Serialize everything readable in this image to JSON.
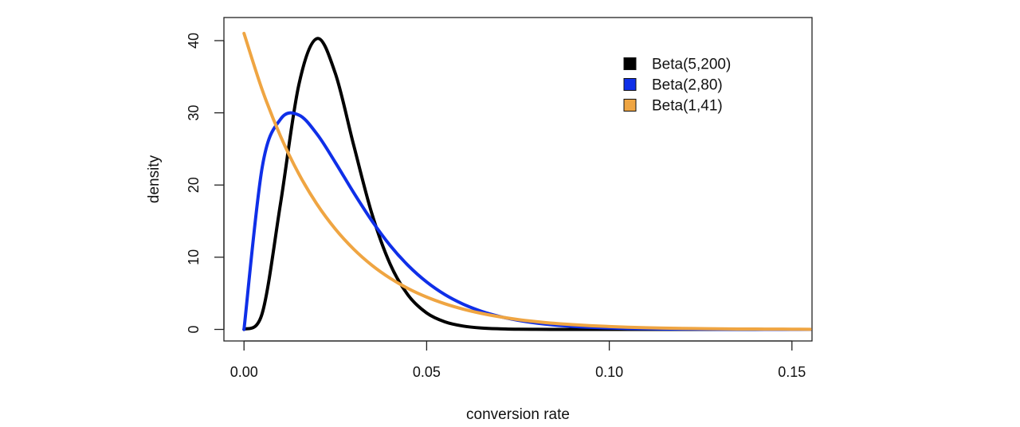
{
  "chart_data": {
    "type": "line",
    "title": "",
    "xlabel": "conversion rate",
    "ylabel": "density",
    "xlim": [
      -0.0055,
      0.1555
    ],
    "ylim": [
      -1.6,
      43.2
    ],
    "x_ticks": [
      0.0,
      0.05,
      0.1,
      0.15
    ],
    "x_tick_labels": [
      "0.00",
      "0.05",
      "0.10",
      "0.15"
    ],
    "y_ticks": [
      0,
      10,
      20,
      30,
      40
    ],
    "y_tick_labels": [
      "0",
      "10",
      "20",
      "30",
      "40"
    ],
    "grid": false,
    "legend_position": "top-right",
    "x": [
      0.0,
      0.005,
      0.01,
      0.015,
      0.02,
      0.025,
      0.03,
      0.035,
      0.04,
      0.045,
      0.05,
      0.055,
      0.06,
      0.065,
      0.07,
      0.075,
      0.08,
      0.085,
      0.09,
      0.095,
      0.1,
      0.105,
      0.11,
      0.115,
      0.12,
      0.125,
      0.13,
      0.135,
      0.14,
      0.145,
      0.15,
      0.155
    ],
    "series": [
      {
        "name": "Beta(5,200)",
        "color": "#000000",
        "values": [
          0.0,
          2.26,
          17.45,
          33.86,
          40.29,
          35.46,
          25.57,
          16.04,
          9.06,
          4.7,
          2.28,
          1.05,
          0.46,
          0.19,
          0.08,
          0.03,
          0.01,
          0.0,
          0.0,
          0.0,
          0.0,
          0.0,
          0.0,
          0.0,
          0.0,
          0.0,
          0.0,
          0.0,
          0.0,
          0.0,
          0.0,
          0.0
        ]
      },
      {
        "name": "Beta(2,80)",
        "color": "#0f2fe8",
        "values": [
          0.0,
          22.52,
          29.12,
          29.7,
          27.04,
          23.13,
          18.96,
          15.05,
          11.63,
          8.82,
          6.57,
          4.82,
          3.5,
          2.51,
          1.79,
          1.26,
          0.88,
          0.61,
          0.42,
          0.29,
          0.2,
          0.13,
          0.09,
          0.06,
          0.04,
          0.03,
          0.02,
          0.01,
          0.01,
          0.0,
          0.0,
          0.0
        ]
      },
      {
        "name": "Beta(1,41)",
        "color": "#efa542",
        "values": [
          41.0,
          33.16,
          26.76,
          21.55,
          17.32,
          13.9,
          11.13,
          8.89,
          7.09,
          5.64,
          4.48,
          3.55,
          2.81,
          2.22,
          1.75,
          1.37,
          1.08,
          0.84,
          0.66,
          0.51,
          0.4,
          0.31,
          0.24,
          0.18,
          0.14,
          0.11,
          0.08,
          0.06,
          0.05,
          0.04,
          0.03,
          0.02
        ]
      }
    ]
  }
}
